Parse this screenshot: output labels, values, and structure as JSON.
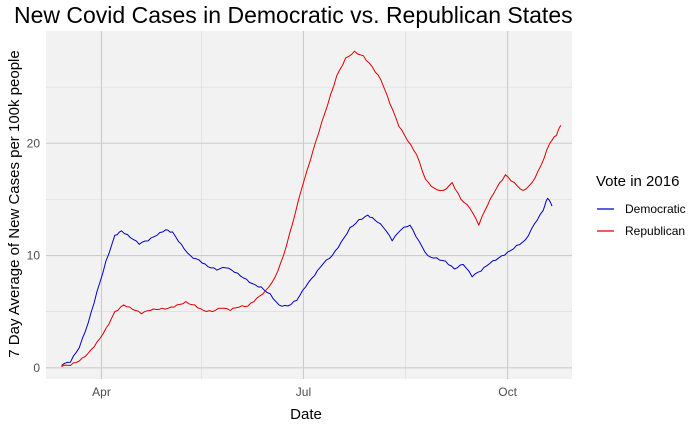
{
  "chart_data": {
    "type": "line",
    "title": "New Covid Cases in Democratic vs. Republican States",
    "xlabel": "Date",
    "ylabel": "7 Day Average of New Cases per 100k people",
    "x_ticks": [
      {
        "date": "2020-04-01",
        "label": "Apr"
      },
      {
        "date": "2020-07-01",
        "label": "Jul"
      },
      {
        "date": "2020-10-01",
        "label": "Oct"
      }
    ],
    "x_minor_ticks": [
      "2020-05-16",
      "2020-08-16"
    ],
    "xlim": [
      "2020-03-07",
      "2020-10-30"
    ],
    "y_ticks": [
      0,
      10,
      20
    ],
    "ylim": [
      -1,
      30
    ],
    "grid": true,
    "legend": {
      "title": "Vote in 2016",
      "position": "right"
    },
    "series": [
      {
        "name": "Democratic",
        "color": "#0000cc",
        "points": [
          [
            "2020-03-14",
            0.2
          ],
          [
            "2020-03-18",
            0.5
          ],
          [
            "2020-03-22",
            1.8
          ],
          [
            "2020-03-26",
            4.0
          ],
          [
            "2020-03-30",
            6.8
          ],
          [
            "2020-04-03",
            9.5
          ],
          [
            "2020-04-07",
            11.8
          ],
          [
            "2020-04-10",
            12.2
          ],
          [
            "2020-04-14",
            11.6
          ],
          [
            "2020-04-18",
            11.0
          ],
          [
            "2020-04-22",
            11.3
          ],
          [
            "2020-04-26",
            11.8
          ],
          [
            "2020-04-30",
            12.3
          ],
          [
            "2020-05-03",
            12.1
          ],
          [
            "2020-05-07",
            11.0
          ],
          [
            "2020-05-11",
            10.0
          ],
          [
            "2020-05-15",
            9.6
          ],
          [
            "2020-05-19",
            9.0
          ],
          [
            "2020-05-23",
            8.7
          ],
          [
            "2020-05-27",
            8.9
          ],
          [
            "2020-05-31",
            8.5
          ],
          [
            "2020-06-04",
            8.0
          ],
          [
            "2020-06-08",
            7.5
          ],
          [
            "2020-06-12",
            7.2
          ],
          [
            "2020-06-16",
            6.6
          ],
          [
            "2020-06-20",
            5.6
          ],
          [
            "2020-06-24",
            5.5
          ],
          [
            "2020-06-28",
            6.0
          ],
          [
            "2020-07-02",
            7.2
          ],
          [
            "2020-07-06",
            8.2
          ],
          [
            "2020-07-10",
            9.3
          ],
          [
            "2020-07-14",
            10.0
          ],
          [
            "2020-07-18",
            11.2
          ],
          [
            "2020-07-22",
            12.5
          ],
          [
            "2020-07-26",
            13.2
          ],
          [
            "2020-07-30",
            13.6
          ],
          [
            "2020-08-02",
            13.2
          ],
          [
            "2020-08-06",
            12.5
          ],
          [
            "2020-08-10",
            11.3
          ],
          [
            "2020-08-14",
            12.3
          ],
          [
            "2020-08-18",
            12.7
          ],
          [
            "2020-08-22",
            11.3
          ],
          [
            "2020-08-26",
            10.0
          ],
          [
            "2020-08-30",
            9.8
          ],
          [
            "2020-09-03",
            9.5
          ],
          [
            "2020-09-07",
            8.8
          ],
          [
            "2020-09-11",
            9.2
          ],
          [
            "2020-09-15",
            8.1
          ],
          [
            "2020-09-19",
            8.6
          ],
          [
            "2020-09-23",
            9.3
          ],
          [
            "2020-09-27",
            9.8
          ],
          [
            "2020-10-01",
            10.3
          ],
          [
            "2020-10-05",
            10.9
          ],
          [
            "2020-10-09",
            11.4
          ],
          [
            "2020-10-13",
            12.8
          ],
          [
            "2020-10-17",
            14.0
          ],
          [
            "2020-10-19",
            15.1
          ],
          [
            "2020-10-21",
            14.4
          ]
        ]
      },
      {
        "name": "Republican",
        "color": "#e00000",
        "points": [
          [
            "2020-03-14",
            0.1
          ],
          [
            "2020-03-18",
            0.2
          ],
          [
            "2020-03-22",
            0.6
          ],
          [
            "2020-03-26",
            1.3
          ],
          [
            "2020-03-30",
            2.3
          ],
          [
            "2020-04-03",
            3.5
          ],
          [
            "2020-04-07",
            5.0
          ],
          [
            "2020-04-11",
            5.6
          ],
          [
            "2020-04-15",
            5.2
          ],
          [
            "2020-04-19",
            4.8
          ],
          [
            "2020-04-23",
            5.1
          ],
          [
            "2020-04-27",
            5.2
          ],
          [
            "2020-05-01",
            5.3
          ],
          [
            "2020-05-05",
            5.6
          ],
          [
            "2020-05-09",
            5.9
          ],
          [
            "2020-05-13",
            5.6
          ],
          [
            "2020-05-17",
            5.1
          ],
          [
            "2020-05-21",
            5.0
          ],
          [
            "2020-05-25",
            5.3
          ],
          [
            "2020-05-29",
            5.1
          ],
          [
            "2020-06-02",
            5.4
          ],
          [
            "2020-06-06",
            5.5
          ],
          [
            "2020-06-10",
            6.2
          ],
          [
            "2020-06-14",
            6.9
          ],
          [
            "2020-06-18",
            8.0
          ],
          [
            "2020-06-22",
            10.0
          ],
          [
            "2020-06-26",
            12.8
          ],
          [
            "2020-06-30",
            15.8
          ],
          [
            "2020-07-04",
            18.4
          ],
          [
            "2020-07-08",
            21.0
          ],
          [
            "2020-07-12",
            23.5
          ],
          [
            "2020-07-16",
            26.0
          ],
          [
            "2020-07-20",
            27.6
          ],
          [
            "2020-07-24",
            28.2
          ],
          [
            "2020-07-28",
            27.8
          ],
          [
            "2020-08-01",
            26.8
          ],
          [
            "2020-08-05",
            25.6
          ],
          [
            "2020-08-09",
            23.5
          ],
          [
            "2020-08-13",
            21.5
          ],
          [
            "2020-08-17",
            20.2
          ],
          [
            "2020-08-21",
            19.0
          ],
          [
            "2020-08-25",
            16.8
          ],
          [
            "2020-08-29",
            16.0
          ],
          [
            "2020-09-02",
            15.8
          ],
          [
            "2020-09-06",
            16.5
          ],
          [
            "2020-09-10",
            15.0
          ],
          [
            "2020-09-14",
            14.2
          ],
          [
            "2020-09-18",
            12.7
          ],
          [
            "2020-09-22",
            14.5
          ],
          [
            "2020-09-26",
            16.0
          ],
          [
            "2020-09-30",
            17.2
          ],
          [
            "2020-10-04",
            16.5
          ],
          [
            "2020-10-08",
            15.8
          ],
          [
            "2020-10-12",
            16.5
          ],
          [
            "2020-10-16",
            18.0
          ],
          [
            "2020-10-20",
            20.0
          ],
          [
            "2020-10-23",
            20.7
          ],
          [
            "2020-10-25",
            21.6
          ]
        ]
      }
    ]
  }
}
